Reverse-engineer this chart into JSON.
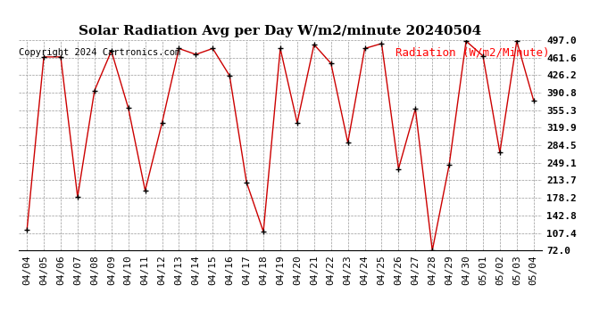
{
  "title": "Solar Radiation Avg per Day W/m2/minute 20240504",
  "copyright": "Copyright 2024 Cartronics.com",
  "legend_label": "Radiation (W/m2/Minute)",
  "dates": [
    "04/04",
    "04/05",
    "04/06",
    "04/07",
    "04/08",
    "04/09",
    "04/10",
    "04/11",
    "04/12",
    "04/13",
    "04/14",
    "04/15",
    "04/16",
    "04/17",
    "04/18",
    "04/19",
    "04/20",
    "04/21",
    "04/22",
    "04/23",
    "04/24",
    "04/25",
    "04/26",
    "04/27",
    "04/28",
    "04/29",
    "04/30",
    "05/01",
    "05/02",
    "05/03",
    "05/04"
  ],
  "values": [
    113,
    463,
    463,
    180,
    395,
    475,
    360,
    193,
    330,
    480,
    468,
    480,
    425,
    210,
    110,
    480,
    330,
    488,
    450,
    290,
    480,
    490,
    237,
    358,
    72,
    245,
    495,
    465,
    270,
    495,
    375
  ],
  "ylim": [
    72.0,
    497.0
  ],
  "yticks": [
    72.0,
    107.4,
    142.8,
    178.2,
    213.7,
    249.1,
    284.5,
    319.9,
    355.3,
    390.8,
    426.2,
    461.6,
    497.0
  ],
  "line_color": "#cc0000",
  "marker_color": "#000000",
  "bg_color": "#ffffff",
  "grid_color": "#999999",
  "title_fontsize": 11,
  "copyright_fontsize": 7.5,
  "legend_fontsize": 9,
  "tick_fontsize": 8
}
